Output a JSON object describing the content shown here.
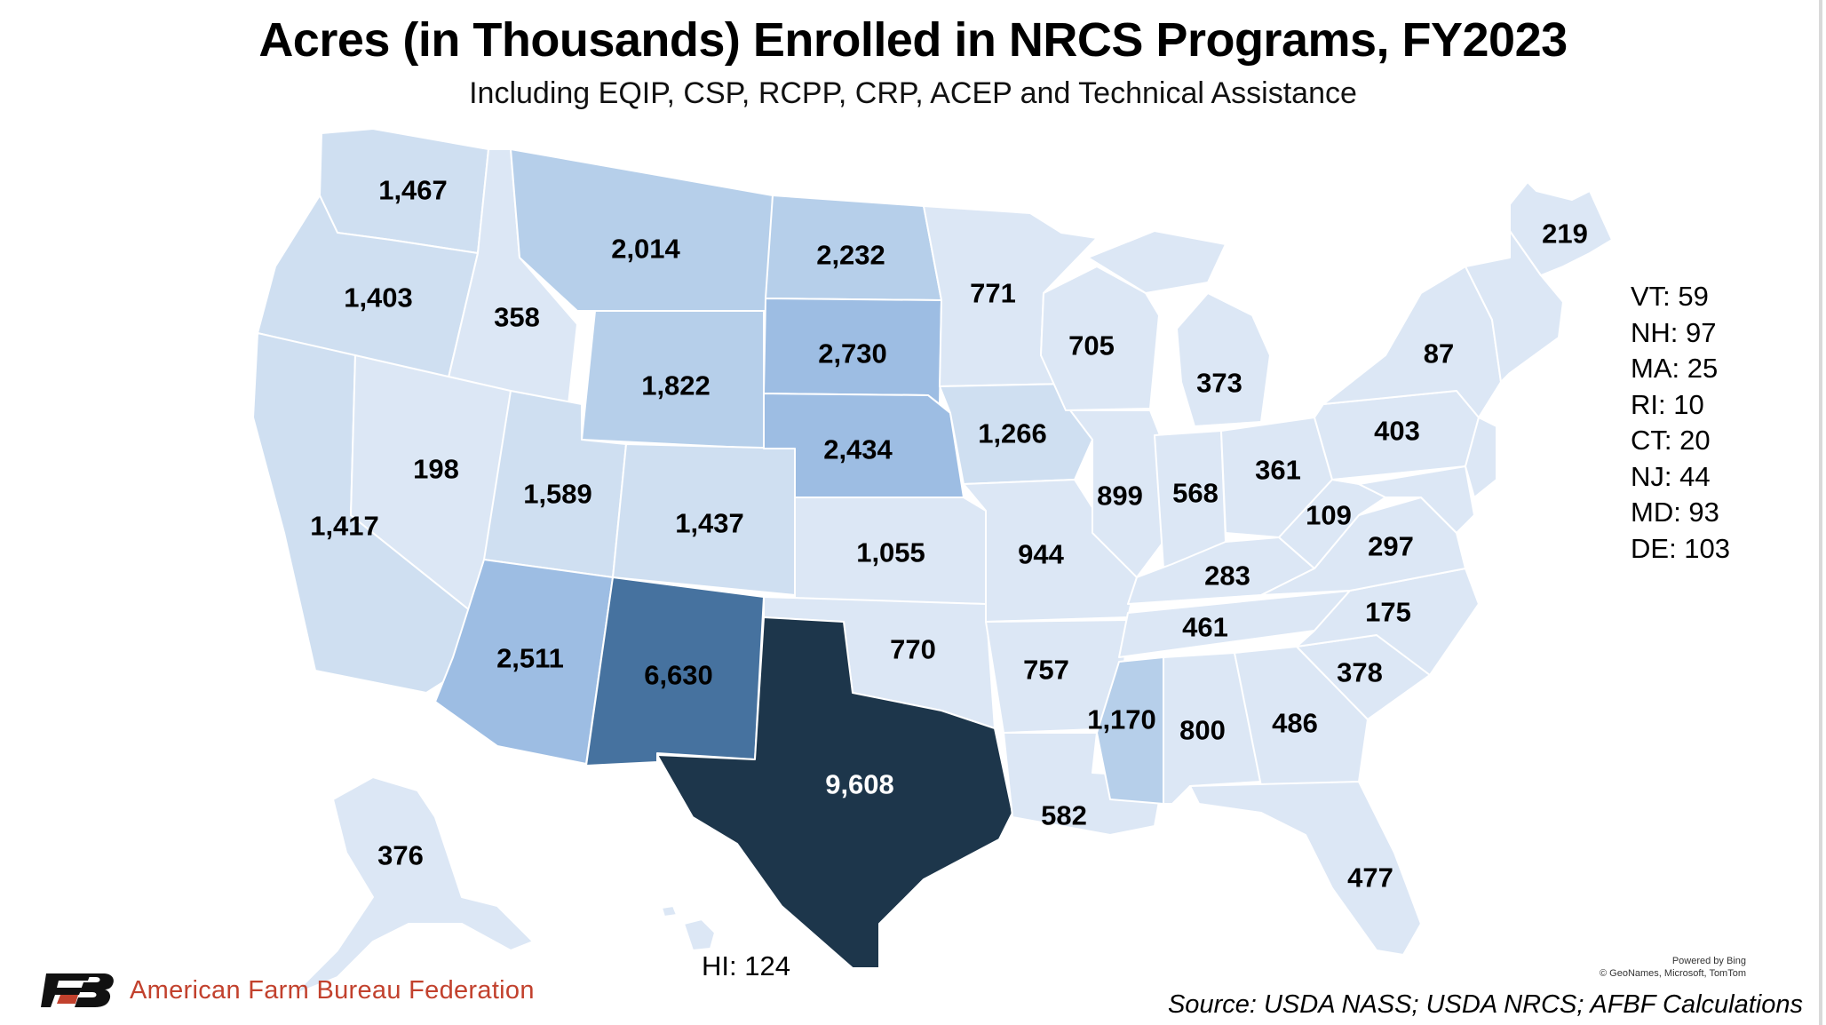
{
  "title": "Acres (in Thousands) Enrolled in NRCS Programs, FY2023",
  "subtitle": "Including EQIP, CSP, RCPP, CRP, ACEP and Technical Assistance",
  "colors": {
    "scale_lowest": "#dce7f5",
    "scale_low": "#cfdff1",
    "scale_mid": "#b6cfea",
    "scale_midhigh": "#9dbde3",
    "scale_high": "#46729f",
    "scale_highest": "#1d364b",
    "border": "#ffffff",
    "org_red": "#c2412d"
  },
  "states": [
    {
      "id": "WA",
      "value": "1,467"
    },
    {
      "id": "OR",
      "value": "1,403"
    },
    {
      "id": "CA",
      "value": "1,417"
    },
    {
      "id": "ID",
      "value": "358"
    },
    {
      "id": "NV",
      "value": "198"
    },
    {
      "id": "MT",
      "value": "2,014"
    },
    {
      "id": "WY",
      "value": "1,822"
    },
    {
      "id": "UT",
      "value": "1,589"
    },
    {
      "id": "CO",
      "value": "1,437"
    },
    {
      "id": "AZ",
      "value": "2,511"
    },
    {
      "id": "NM",
      "value": "6,630"
    },
    {
      "id": "ND",
      "value": "2,232"
    },
    {
      "id": "SD",
      "value": "2,730"
    },
    {
      "id": "NE",
      "value": "2,434"
    },
    {
      "id": "KS",
      "value": "1,055"
    },
    {
      "id": "OK",
      "value": "770"
    },
    {
      "id": "TX",
      "value": "9,608"
    },
    {
      "id": "MN",
      "value": "771"
    },
    {
      "id": "IA",
      "value": "1,266"
    },
    {
      "id": "MO",
      "value": "944"
    },
    {
      "id": "AR",
      "value": "757"
    },
    {
      "id": "LA",
      "value": "582"
    },
    {
      "id": "WI",
      "value": "705"
    },
    {
      "id": "IL",
      "value": "899"
    },
    {
      "id": "MI",
      "value": "373"
    },
    {
      "id": "IN",
      "value": "568"
    },
    {
      "id": "OH",
      "value": "361"
    },
    {
      "id": "KY",
      "value": "283"
    },
    {
      "id": "TN",
      "value": "461"
    },
    {
      "id": "MS",
      "value": "1,170"
    },
    {
      "id": "AL",
      "value": "800"
    },
    {
      "id": "GA",
      "value": "486"
    },
    {
      "id": "FL",
      "value": "477"
    },
    {
      "id": "SC",
      "value": "378"
    },
    {
      "id": "NC",
      "value": "175"
    },
    {
      "id": "VA",
      "value": "297"
    },
    {
      "id": "WV",
      "value": "109"
    },
    {
      "id": "PA",
      "value": "403"
    },
    {
      "id": "NY",
      "value": "87"
    },
    {
      "id": "ME",
      "value": "219"
    },
    {
      "id": "AK",
      "value": "376"
    }
  ],
  "small_states": [
    "VT: 59",
    "NH: 97",
    "MA: 25",
    "RI: 10",
    "CT: 20",
    "NJ: 44",
    "MD: 93",
    "DE: 103"
  ],
  "hawaii": "HI: 124",
  "attribution": {
    "line1": "Powered by Bing",
    "line2": "© GeoNames, Microsoft, TomTom"
  },
  "organization": "American Farm Bureau Federation",
  "source": "Source: USDA NASS; USDA NRCS; AFBF Calculations"
}
